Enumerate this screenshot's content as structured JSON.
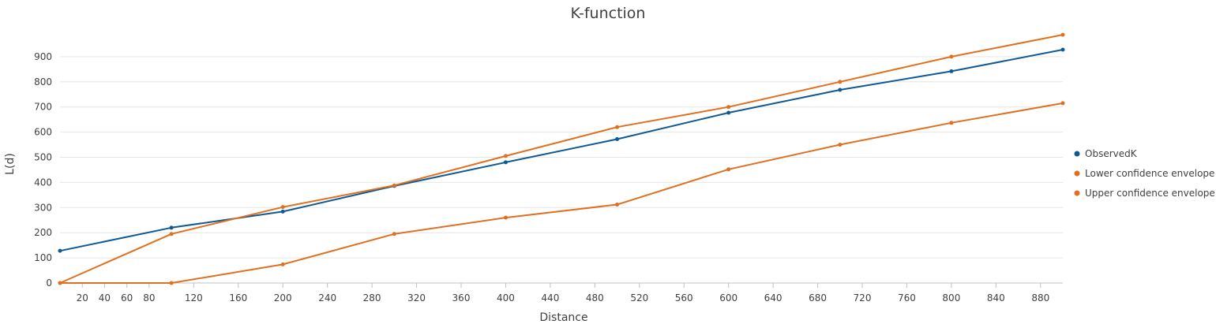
{
  "chart_data": {
    "type": "line",
    "title": "K-function",
    "xlabel": "Distance",
    "ylabel": "L(d)",
    "xlim": [
      0,
      900
    ],
    "ylim": [
      0,
      1000
    ],
    "grid": true,
    "legend_position": "right",
    "x_ticks": [
      20,
      40,
      60,
      80,
      120,
      160,
      200,
      240,
      280,
      320,
      360,
      400,
      440,
      480,
      520,
      560,
      600,
      640,
      680,
      720,
      760,
      800,
      840,
      880
    ],
    "y_ticks": [
      0,
      100,
      200,
      300,
      400,
      500,
      600,
      700,
      800,
      900
    ],
    "x": [
      0,
      100,
      200,
      300,
      400,
      500,
      600,
      700,
      800,
      900
    ],
    "series": [
      {
        "name": "ObservedK",
        "color": "#0e5a94",
        "values": [
          128,
          220,
          284,
          386,
          480,
          572,
          677,
          768,
          842,
          928
        ]
      },
      {
        "name": "Lower confidence envelope",
        "color": "#e07020",
        "values": [
          0,
          0,
          74,
          195,
          260,
          312,
          452,
          550,
          637,
          715
        ]
      },
      {
        "name": "Upper confidence envelope",
        "color": "#e07020",
        "values": [
          0,
          195,
          302,
          388,
          505,
          620,
          700,
          800,
          900,
          987
        ]
      }
    ]
  }
}
